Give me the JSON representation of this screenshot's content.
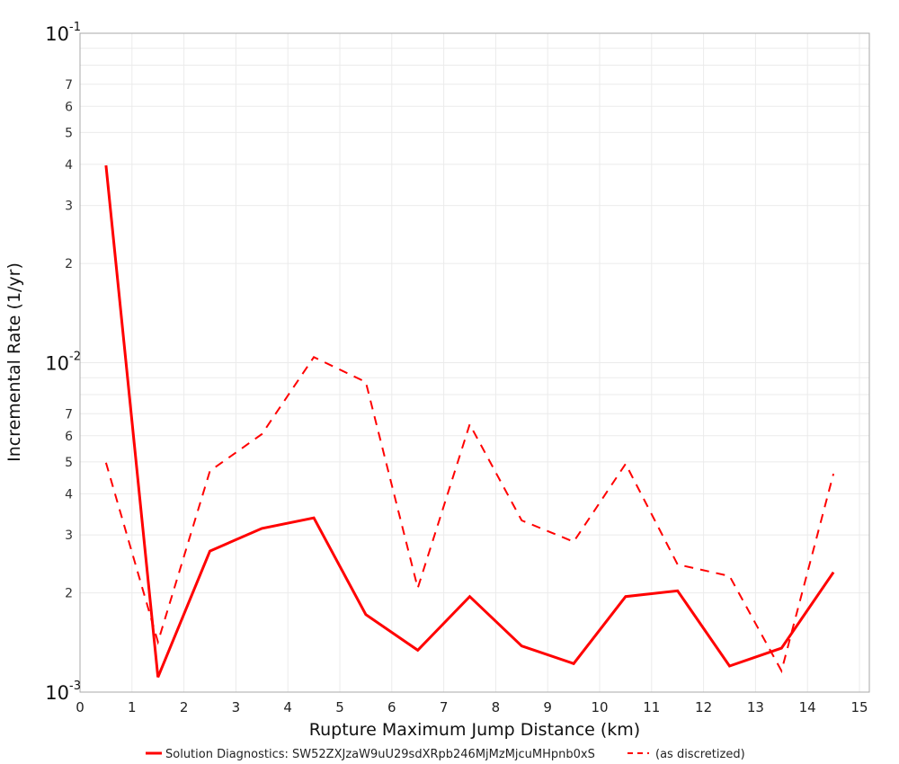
{
  "chart_data": {
    "type": "line",
    "title": "",
    "xlabel": "Rupture Maximum Jump Distance (km)",
    "ylabel": "Incremental Rate (1/yr)",
    "xlim": [
      0,
      15.2
    ],
    "ylim": [
      0.001,
      0.1
    ],
    "yscale": "log",
    "grid": true,
    "legend_position": "bottom",
    "x_ticks": [
      "0",
      "1",
      "2",
      "3",
      "4",
      "5",
      "6",
      "7",
      "8",
      "9",
      "10",
      "11",
      "12",
      "13",
      "14",
      "15"
    ],
    "y_decade_ticks": [
      {
        "base": "10",
        "exp": "-1",
        "value": 0.1
      },
      {
        "base": "10",
        "exp": "-2",
        "value": 0.01
      },
      {
        "base": "10",
        "exp": "-3",
        "value": 0.001
      }
    ],
    "y_minor_labels": [
      "2",
      "3",
      "4",
      "5",
      "6",
      "7"
    ],
    "x": [
      0.5,
      1.5,
      2.5,
      3.5,
      4.5,
      5.5,
      6.5,
      7.5,
      8.5,
      9.5,
      10.5,
      11.5,
      12.5,
      13.5,
      14.5
    ],
    "series": [
      {
        "name": "Solution Diagnostics: SW52ZXJzaW9uU29sdXRpb246MjMzMjcuMHpnb0xS",
        "style": "solid",
        "color": "#ff0000",
        "values": [
          0.0397,
          0.00111,
          0.00268,
          0.00314,
          0.00338,
          0.00172,
          0.00134,
          0.00195,
          0.00138,
          0.00122,
          0.00195,
          0.00203,
          0.0012,
          0.00136,
          0.00231
        ]
      },
      {
        "name": "(as discretized)",
        "style": "dashed",
        "color": "#ff0000",
        "values": [
          0.00497,
          0.00142,
          0.00469,
          0.00607,
          0.0104,
          0.00873,
          0.00207,
          0.0065,
          0.00332,
          0.00286,
          0.00493,
          0.00244,
          0.00225,
          0.00116,
          0.0046
        ]
      }
    ]
  },
  "legend": {
    "items": [
      {
        "label": "Solution Diagnostics: SW52ZXJzaW9uU29sdXRpb246MjMzMjcuMHpnb0xS",
        "style": "solid"
      },
      {
        "label": "(as discretized)",
        "style": "dashed"
      }
    ]
  },
  "colors": {
    "series": "#ff0000",
    "grid": "#ebebeb",
    "axis": "#aaaaaa"
  }
}
